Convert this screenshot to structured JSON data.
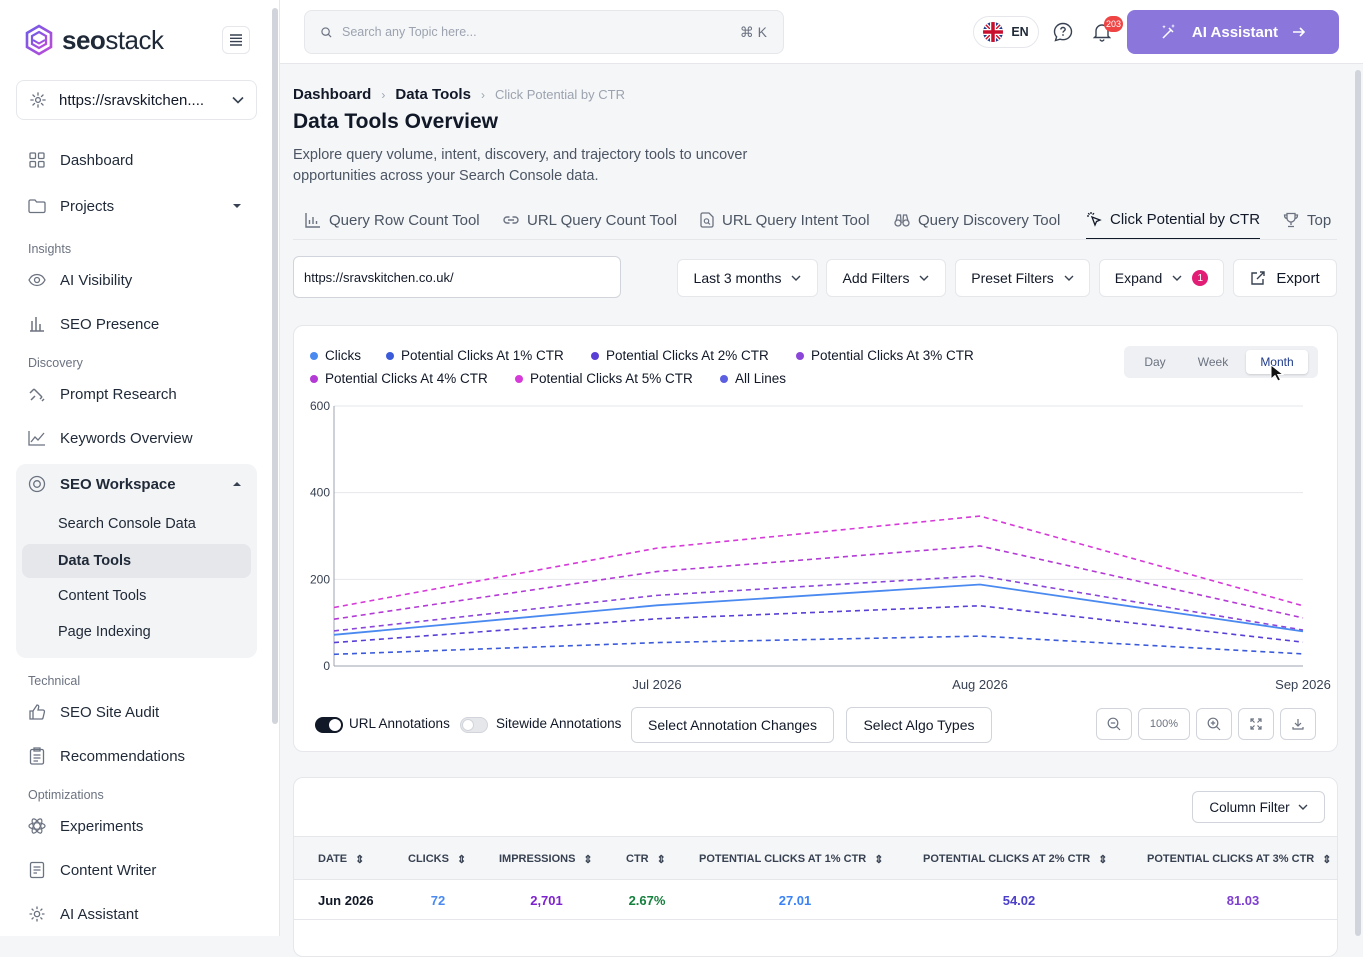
{
  "brand": {
    "name_bold": "seo",
    "name_rest": "stack"
  },
  "site_selector": {
    "value": "https://sravskitchen...."
  },
  "nav": {
    "dashboard": "Dashboard",
    "projects": "Projects",
    "sec_insights": "Insights",
    "ai_visibility": "AI Visibility",
    "seo_presence": "SEO Presence",
    "sec_discovery": "Discovery",
    "prompt_research": "Prompt Research",
    "keywords_overview": "Keywords Overview",
    "seo_workspace": "SEO Workspace",
    "search_console": "Search Console Data",
    "data_tools": "Data Tools",
    "content_tools": "Content Tools",
    "page_indexing": "Page Indexing",
    "sec_technical": "Technical",
    "site_audit": "SEO Site Audit",
    "recommendations": "Recommendations",
    "sec_optimizations": "Optimizations",
    "experiments": "Experiments",
    "content_writer": "Content Writer",
    "ai_assistant": "AI Assistant"
  },
  "topbar": {
    "search_placeholder": "Search any Topic here...",
    "shortcut": "⌘ K",
    "lang": "EN",
    "notifications": "203",
    "ai_button": "AI Assistant"
  },
  "breadcrumb": {
    "b1": "Dashboard",
    "b2": "Data Tools",
    "current": "Click Potential by CTR"
  },
  "page": {
    "title": "Data Tools Overview",
    "description": "Explore query volume, intent, discovery, and trajectory tools to uncover opportunities across your Search Console data."
  },
  "tabs": [
    "Query Row Count Tool",
    "URL Query Count Tool",
    "URL Query Intent Tool",
    "Query Discovery Tool",
    "Click Potential by CTR",
    "Top"
  ],
  "controls": {
    "url_value": "https://sravskitchen.co.uk/",
    "date_range": "Last 3 months",
    "add_filters": "Add Filters",
    "preset_filters": "Preset Filters",
    "expand": "Expand",
    "expand_count": "1",
    "export": "Export"
  },
  "granularity": {
    "day": "Day",
    "week": "Week",
    "month": "Month",
    "selected": "Month"
  },
  "legend": [
    {
      "name": "Clicks",
      "color": "#4a8af0"
    },
    {
      "name": "Potential Clicks At 1% CTR",
      "color": "#3b5bdb"
    },
    {
      "name": "Potential Clicks At 2% CTR",
      "color": "#5a3fd6"
    },
    {
      "name": "Potential Clicks At 3% CTR",
      "color": "#8b45d9"
    },
    {
      "name": "Potential Clicks At 4% CTR",
      "color": "#b43ad6"
    },
    {
      "name": "Potential Clicks At 5% CTR",
      "color": "#d63ad8"
    },
    {
      "name": "All Lines",
      "color": "#5b5fe0"
    }
  ],
  "chart_data": {
    "type": "line",
    "x": [
      "Jun 2026",
      "Jul 2026",
      "Aug 2026",
      "Sep 2026"
    ],
    "x_tick_labels": [
      "Jul 2026",
      "Aug 2026",
      "Sep 2026"
    ],
    "ylim": [
      0,
      600
    ],
    "y_ticks": [
      "0",
      "200",
      "400",
      "600"
    ],
    "grid": true,
    "series": [
      {
        "name": "Clicks",
        "values": [
          72,
          140,
          188,
          80
        ],
        "color": "#4a8af0",
        "dashed": false
      },
      {
        "name": "Potential Clicks At 1% CTR",
        "values": [
          27,
          54,
          69,
          28
        ],
        "color": "#3b5bdb",
        "dashed": true
      },
      {
        "name": "Potential Clicks At 2% CTR",
        "values": [
          54,
          109,
          139,
          55
        ],
        "color": "#5a3fd6",
        "dashed": true
      },
      {
        "name": "Potential Clicks At 3% CTR",
        "values": [
          81,
          163,
          208,
          83
        ],
        "color": "#8b45d9",
        "dashed": true
      },
      {
        "name": "Potential Clicks At 4% CTR",
        "values": [
          108,
          218,
          277,
          111
        ],
        "color": "#b43ad6",
        "dashed": true
      },
      {
        "name": "Potential Clicks At 5% CTR",
        "values": [
          135,
          272,
          346,
          139
        ],
        "color": "#d63ad8",
        "dashed": true
      }
    ]
  },
  "annotations": {
    "url": "URL Annotations",
    "sitewide": "Sitewide Annotations",
    "select_changes": "Select Annotation Changes",
    "select_algo": "Select Algo Types",
    "zoom": "100%"
  },
  "table": {
    "column_filter": "Column Filter",
    "headers": [
      "DATE",
      "CLICKS",
      "IMPRESSIONS",
      "CTR",
      "POTENTIAL CLICKS AT 1% CTR",
      "POTENTIAL CLICKS AT 2% CTR",
      "POTENTIAL CLICKS AT 3% CTR"
    ],
    "rows": [
      [
        "Jun 2026",
        "72",
        "2,701",
        "2.67%",
        "27.01",
        "54.02",
        "81.03"
      ]
    ]
  }
}
